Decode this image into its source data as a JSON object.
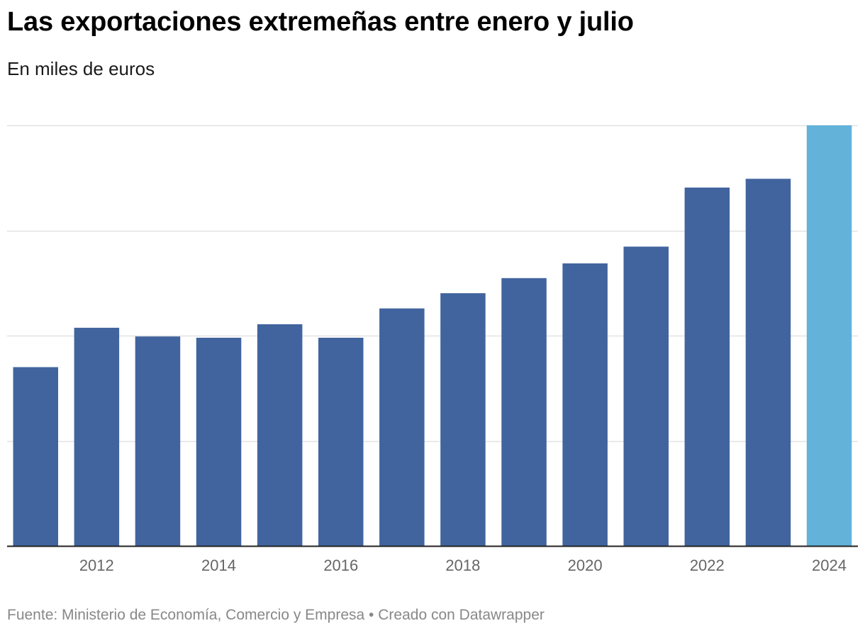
{
  "title": "Las exportaciones extremeñas entre enero y julio",
  "subtitle": "En miles de euros",
  "footer": {
    "source": "Fuente: Ministerio de Economía, Comercio y Empresa",
    "separator": " • ",
    "credit": "Creado con Datawrapper"
  },
  "colors": {
    "bar": "#41649e",
    "highlight": "#62b2d9",
    "grid": "#e2e2e2",
    "baseline": "#222222"
  },
  "chart_data": {
    "type": "bar",
    "title": "Las exportaciones extremeñas entre enero y julio",
    "subtitle": "En miles de euros",
    "xlabel": "",
    "ylabel": "",
    "grid": true,
    "categories": [
      "2011",
      "2012",
      "2013",
      "2014",
      "2015",
      "2016",
      "2017",
      "2018",
      "2019",
      "2020",
      "2021",
      "2022",
      "2023",
      "2024"
    ],
    "x_tick_labels": [
      "2012",
      "2014",
      "2016",
      "2018",
      "2020",
      "2022",
      "2024"
    ],
    "values": [
      1020,
      1245,
      1195,
      1188,
      1265,
      1188,
      1355,
      1442,
      1528,
      1612,
      1708,
      2045,
      2095,
      2400
    ],
    "highlight_category": "2024",
    "ylim": [
      0,
      2400
    ],
    "gridline_values": [
      600,
      1200,
      1800,
      2400
    ]
  }
}
